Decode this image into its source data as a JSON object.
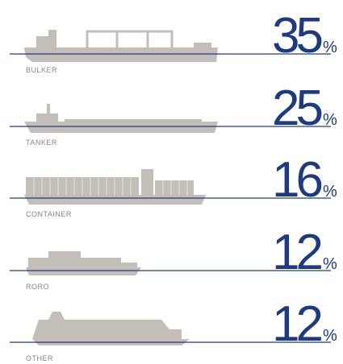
{
  "chart_data": {
    "type": "pictogram",
    "categories": [
      "BULKER",
      "TANKER",
      "CONTAINER",
      "RORO",
      "OTHER"
    ],
    "values": [
      35,
      25,
      16,
      12,
      12
    ],
    "unit": "%",
    "color": "#1d3a82"
  }
}
